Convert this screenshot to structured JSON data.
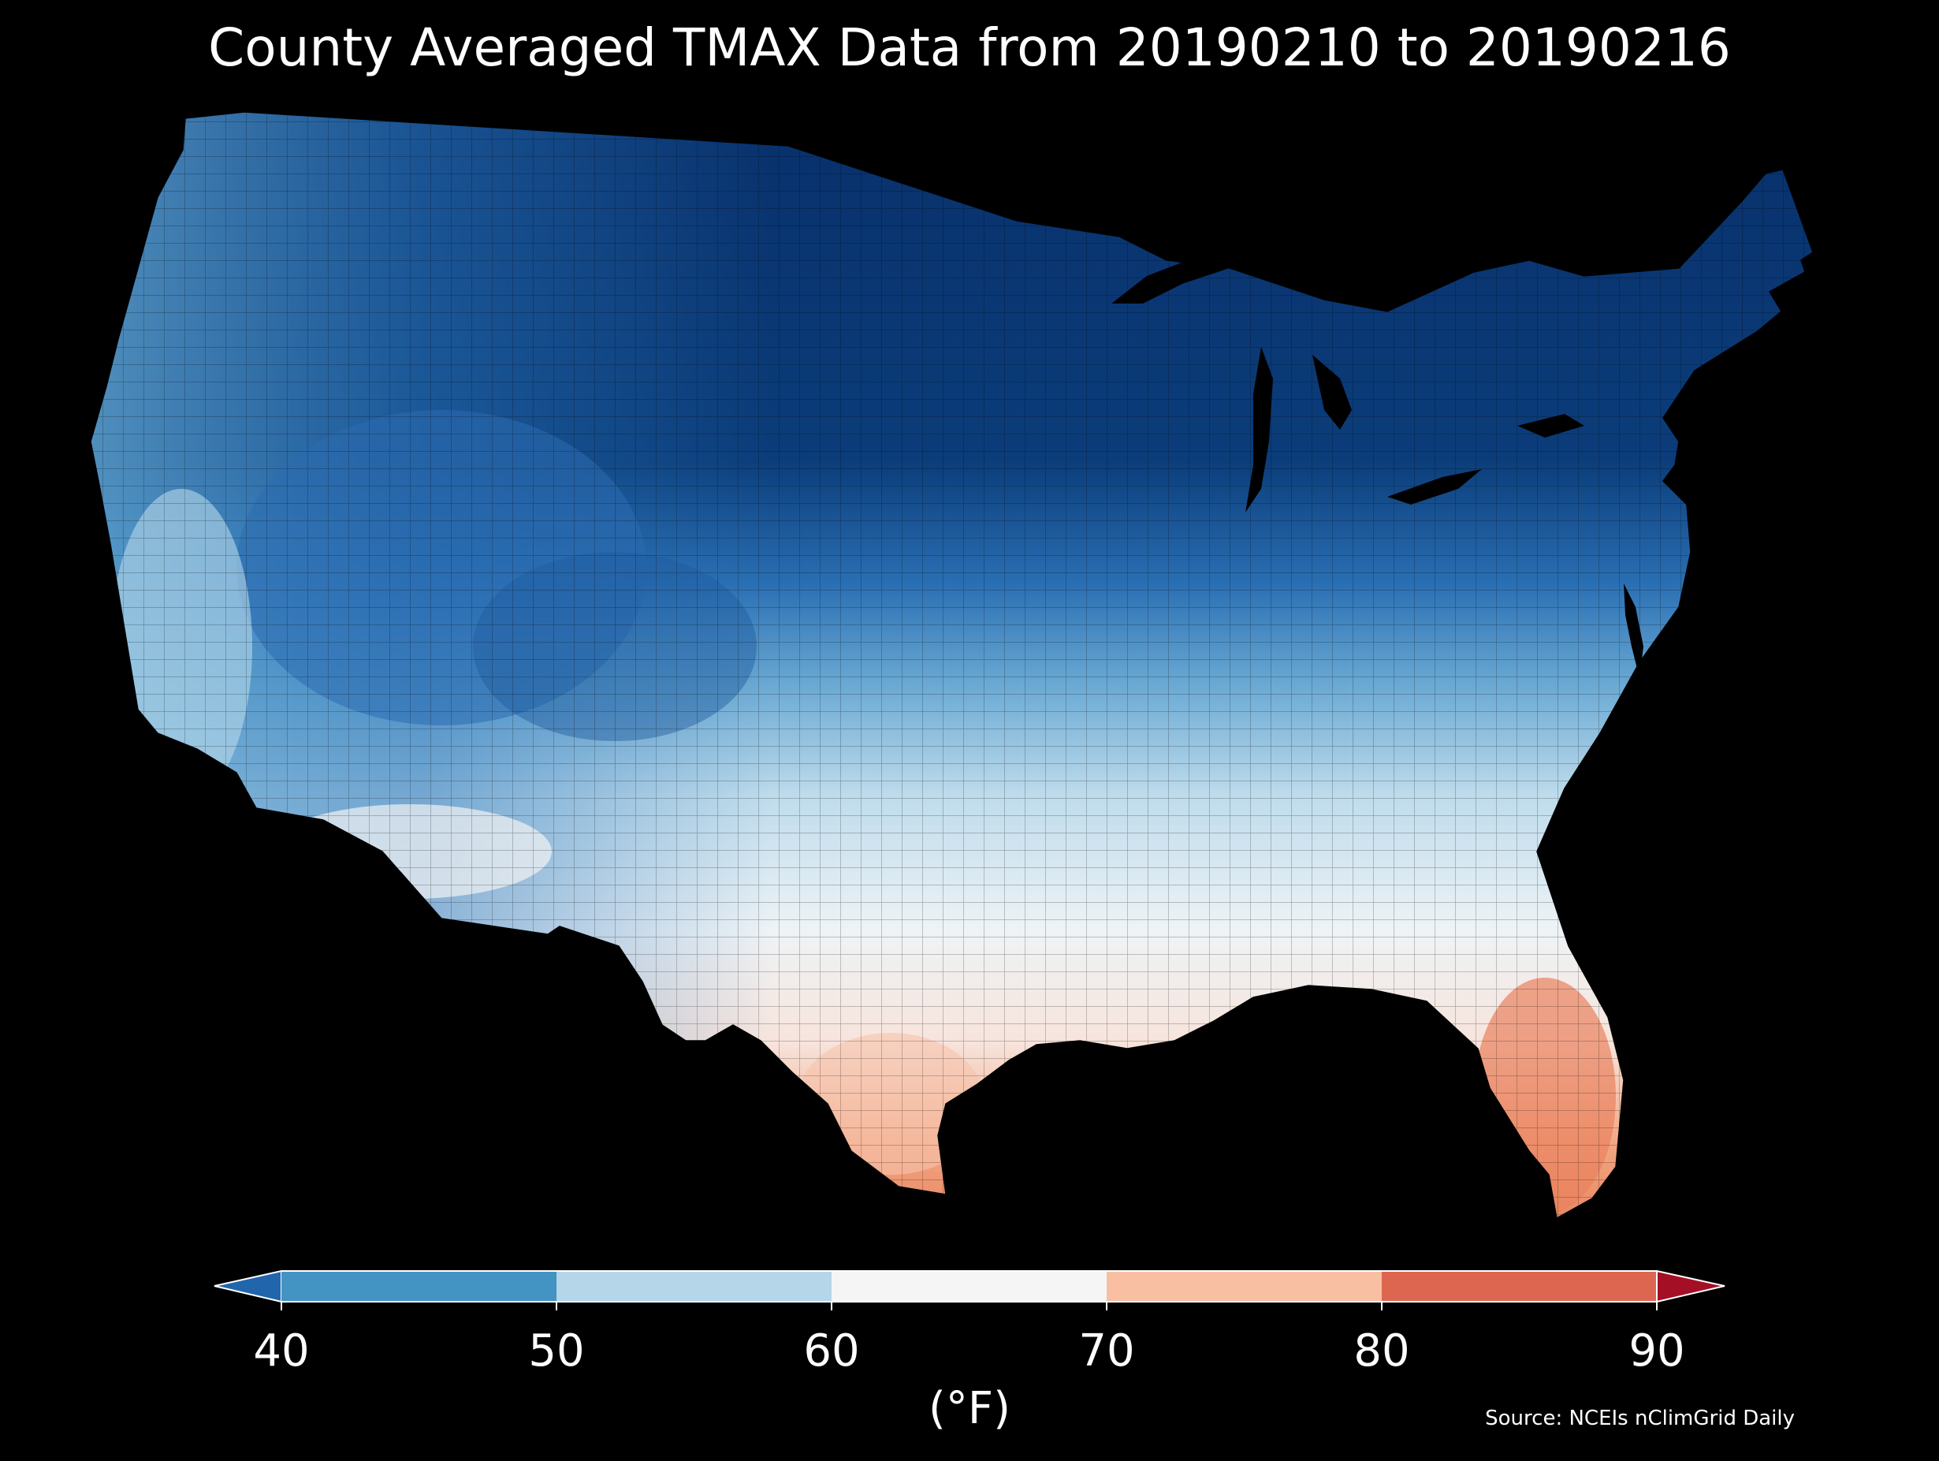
{
  "title": "County Averaged TMAX Data from 20190210 to 20190216",
  "source": "Source: NCEIs nClimGrid Daily",
  "colors": {
    "background": "#000000",
    "text": "#ffffff"
  },
  "chart_data": {
    "type": "choropleth",
    "variable": "TMAX",
    "region": "Contiguous United States (counties)",
    "date_range": [
      "20190210",
      "20190216"
    ],
    "colorbar": {
      "label": "(°F)",
      "ticks": [
        "40",
        "50",
        "60",
        "70",
        "80",
        "90"
      ],
      "tick_values": [
        40,
        50,
        60,
        70,
        80,
        90
      ],
      "range": [
        40,
        90
      ],
      "extend": "both",
      "bins": [
        {
          "range": "<40",
          "color": "#2166ac"
        },
        {
          "range": "40-50",
          "color": "#4393c3"
        },
        {
          "range": "50-60",
          "color": "#b4d6e8"
        },
        {
          "range": "60-70",
          "color": "#f5f5f5"
        },
        {
          "range": "70-80",
          "color": "#f8bfa2"
        },
        {
          "range": "80-90",
          "color": "#dd6650"
        },
        {
          "range": ">90",
          "color": "#a50f26"
        }
      ]
    }
  }
}
